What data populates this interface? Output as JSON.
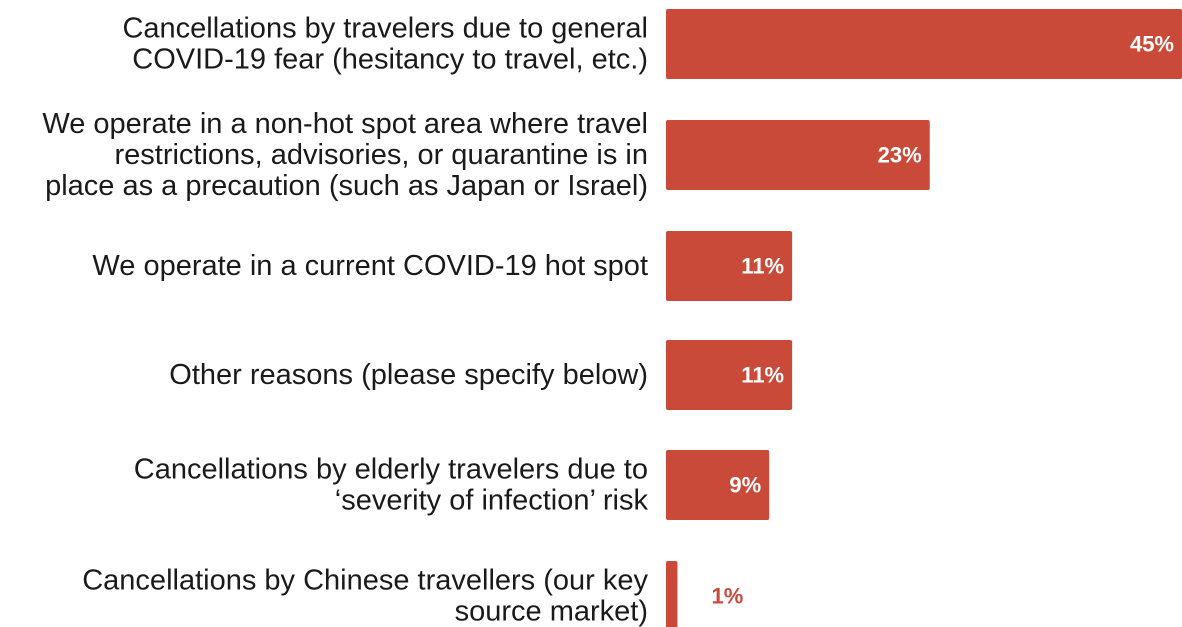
{
  "chart_data": {
    "type": "bar",
    "orientation": "horizontal",
    "categories": [
      [
        "Cancellations by travelers due to general",
        "COVID-19 fear (hesitancy to travel, etc.)"
      ],
      [
        "We operate in a non-hot spot area where travel",
        "restrictions, advisories, or quarantine is in",
        "place as a precaution (such as Japan or Israel)"
      ],
      [
        "We operate in a current COVID-19 hot spot"
      ],
      [
        "Other reasons (please specify below)"
      ],
      [
        "Cancellations by elderly travelers due to",
        "‘severity of infection’ risk"
      ],
      [
        "Cancellations by Chinese travellers (our key",
        "source market)"
      ]
    ],
    "values": [
      45,
      23,
      11,
      11,
      9,
      1
    ],
    "value_labels": [
      "45%",
      "23%",
      "11%",
      "11%",
      "9%",
      "1%"
    ],
    "xlim": [
      0,
      45
    ],
    "grid": false,
    "legend": "none",
    "colors": {
      "bar": "#c94a38",
      "label_inside": "#ffffff",
      "label_outside": "#c94a38",
      "text": "#1a1a1a"
    }
  }
}
